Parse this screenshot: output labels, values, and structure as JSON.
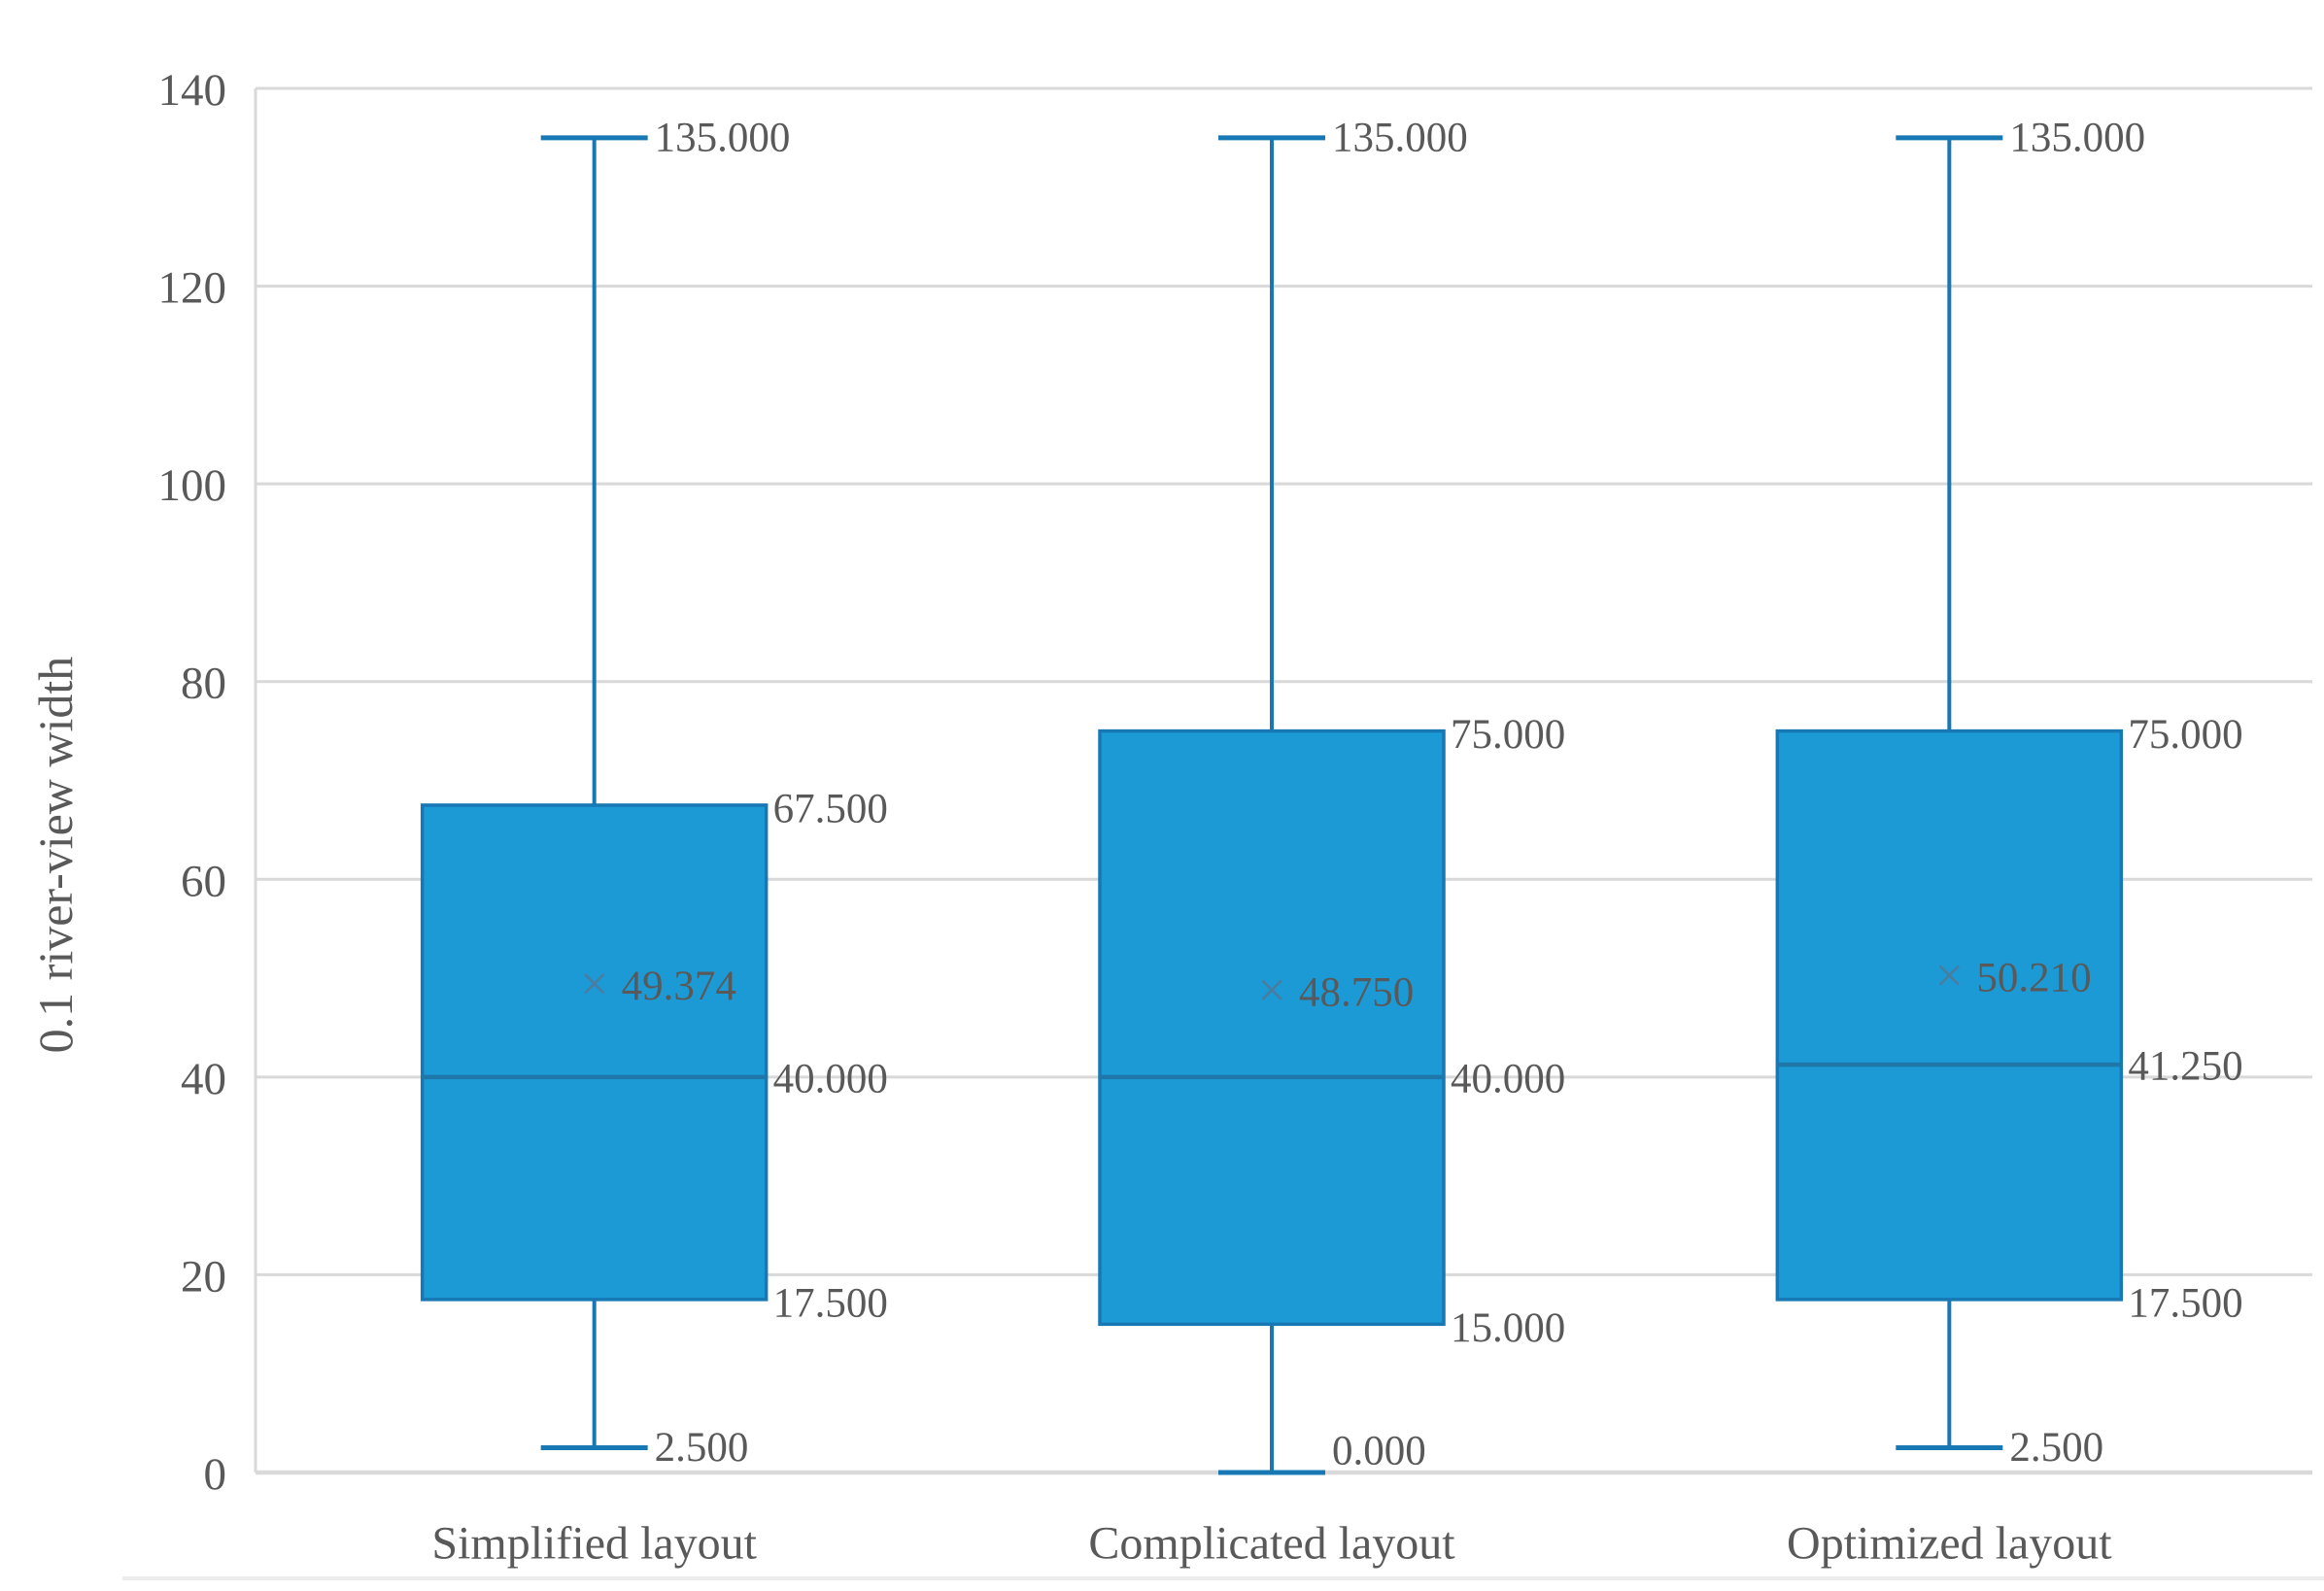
{
  "chart_data": {
    "type": "boxplot",
    "title": "",
    "xlabel": "",
    "ylabel": "0.1 river-view width",
    "ylim": [
      0,
      140
    ],
    "yticks": [
      140,
      120,
      100,
      80,
      60,
      40,
      20,
      0
    ],
    "ytick_labels": [
      "140",
      "120",
      "100",
      "80",
      "60",
      "40",
      "20",
      "0"
    ],
    "grid": true,
    "legend": false,
    "categories": [
      "Simplified layout",
      "Complicated layout",
      "Optimized layout"
    ],
    "series": [
      {
        "category": "Simplified layout",
        "min": 2.5,
        "q1": 17.5,
        "median": 40.0,
        "mean": 49.374,
        "q3": 67.5,
        "max": 135.0,
        "labels": {
          "min": "2.500",
          "q1": "17.500",
          "median": "40.000",
          "mean": "49.374",
          "q3": "67.500",
          "max": "135.000"
        }
      },
      {
        "category": "Complicated layout",
        "min": 0.0,
        "q1": 15.0,
        "median": 40.0,
        "mean": 48.75,
        "q3": 75.0,
        "max": 135.0,
        "labels": {
          "min": "0.000",
          "q1": "15.000",
          "median": "40.000",
          "mean": "48.750",
          "q3": "75.000",
          "max": "135.000"
        }
      },
      {
        "category": "Optimized layout",
        "min": 2.5,
        "q1": 17.5,
        "median": 41.25,
        "mean": 50.21,
        "q3": 75.0,
        "max": 135.0,
        "labels": {
          "min": "2.500",
          "q1": "17.500",
          "median": "41.250",
          "mean": "50.210",
          "q3": "75.000",
          "max": "135.000"
        }
      }
    ],
    "mean_marker_glyph": "×",
    "colors": {
      "box_fill": "#1C9AD6",
      "box_border": "#1878B4",
      "median_line": "#1E77A8",
      "whisker": "#1878B4",
      "mean_marker": "#4A7CA0",
      "label_text": "#595959",
      "axis_text": "#595959",
      "gridline": "#D9D9D9",
      "axis_line": "#D9D9D9"
    }
  }
}
